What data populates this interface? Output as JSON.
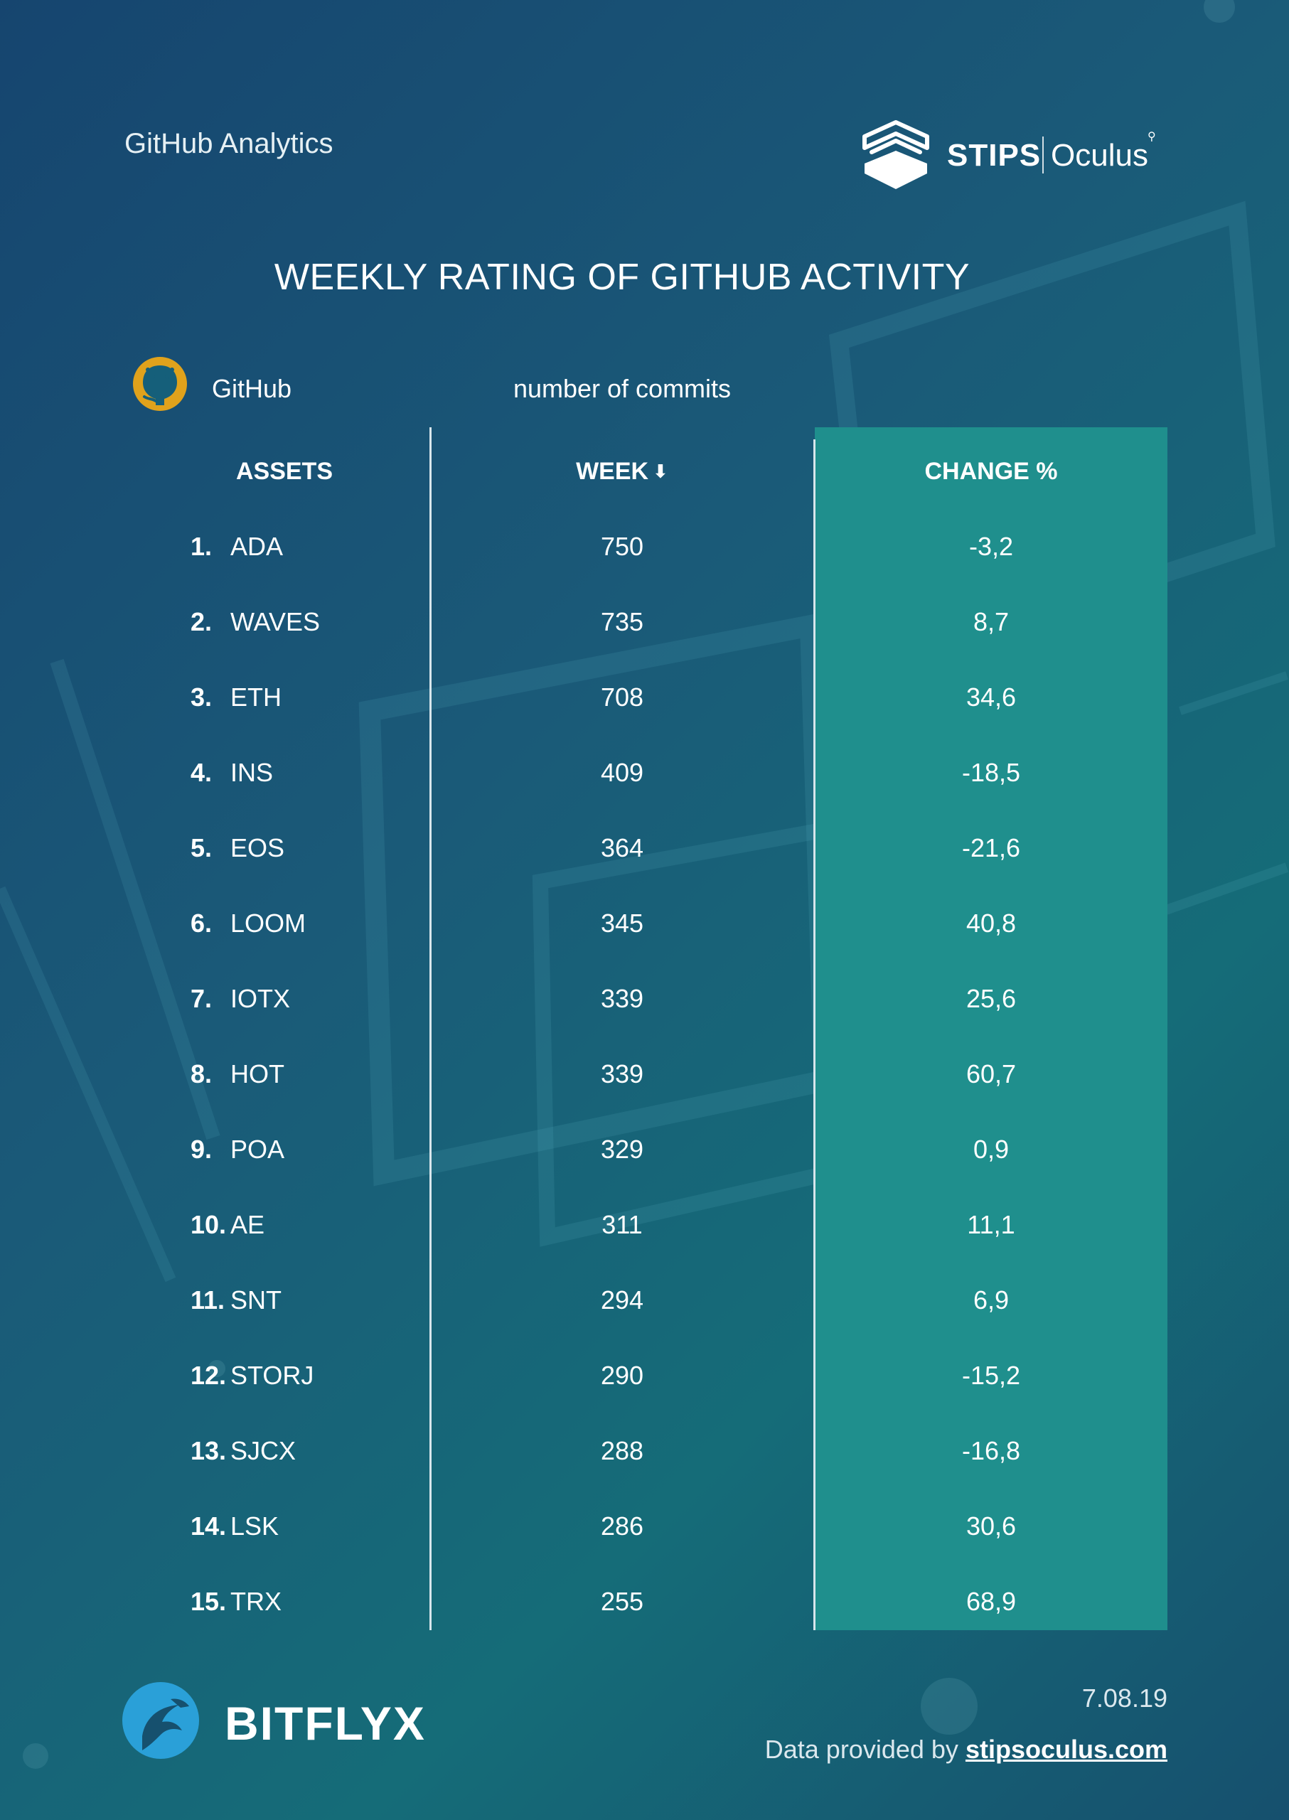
{
  "header": {
    "title": "GitHub Analytics"
  },
  "brand": {
    "name": "STIPS",
    "product": "Oculus",
    "mark_icon": "stips-stack-icon"
  },
  "chart_data": {
    "type": "table",
    "title": "WEEKLY RATING OF GITHUB ACTIVITY",
    "source_label": "GitHub",
    "metric_label": "number of commits",
    "columns": [
      "ASSETS",
      "WEEK",
      "CHANGE %"
    ],
    "sorted_by": "WEEK",
    "sort_icon": "arrow-down-icon",
    "rows": [
      {
        "rank": "1.",
        "asset": "ADA",
        "week": 750,
        "change": "-3,2"
      },
      {
        "rank": "2.",
        "asset": "WAVES",
        "week": 735,
        "change": "8,7"
      },
      {
        "rank": "3.",
        "asset": "ETH",
        "week": 708,
        "change": "34,6"
      },
      {
        "rank": "4.",
        "asset": "INS",
        "week": 409,
        "change": "-18,5"
      },
      {
        "rank": "5.",
        "asset": "EOS",
        "week": 364,
        "change": "-21,6"
      },
      {
        "rank": "6.",
        "asset": "LOOM",
        "week": 345,
        "change": "40,8"
      },
      {
        "rank": "7.",
        "asset": "IOTX",
        "week": 339,
        "change": "25,6"
      },
      {
        "rank": "8.",
        "asset": "HOT",
        "week": 339,
        "change": "60,7"
      },
      {
        "rank": "9.",
        "asset": "POA",
        "week": 329,
        "change": "0,9"
      },
      {
        "rank": "10.",
        "asset": "AE",
        "week": 311,
        "change": "11,1"
      },
      {
        "rank": "11.",
        "asset": "SNT",
        "week": 294,
        "change": "6,9"
      },
      {
        "rank": "12.",
        "asset": "STORJ",
        "week": 290,
        "change": "-15,2"
      },
      {
        "rank": "13.",
        "asset": "SJCX",
        "week": 288,
        "change": "-16,8"
      },
      {
        "rank": "14.",
        "asset": "LSK",
        "week": 286,
        "change": "30,6"
      },
      {
        "rank": "15.",
        "asset": "TRX",
        "week": 255,
        "change": "68,9"
      }
    ]
  },
  "footer": {
    "brand": "BITFLYX",
    "date": "7.08.19",
    "credit_prefix": "Data provided by",
    "credit_link": "stipsoculus.com"
  },
  "colors": {
    "accent_panel": "#1f8f8d",
    "github_icon": "#e0a21c",
    "bitflyx_icon": "#2aa0d8",
    "text": "#ffffff"
  }
}
